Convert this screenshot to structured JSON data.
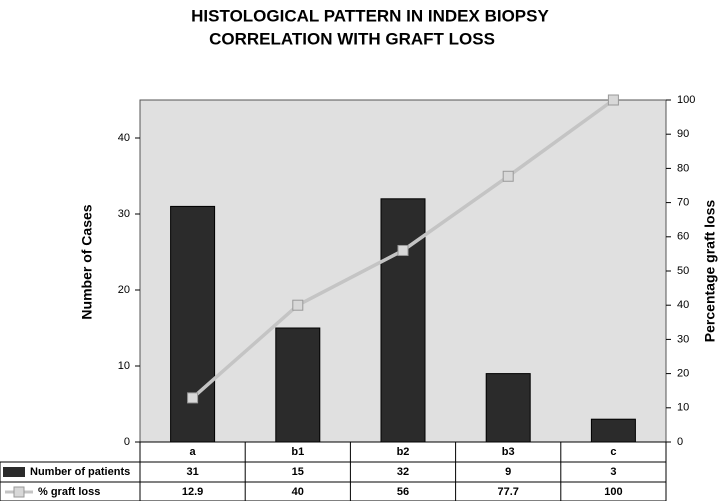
{
  "chart_data": {
    "type": "bar-line",
    "title": [
      "HISTOLOGICAL PATTERN IN INDEX BIOPSY",
      "CORRELATION WITH GRAFT LOSS"
    ],
    "y_label": "Number of Cases",
    "y2_label": "Percentage graft loss",
    "categories": [
      "a",
      "b1",
      "b2",
      "b3",
      "c"
    ],
    "series": [
      {
        "name": "Number of patients",
        "type": "bar",
        "color": "#2b2b2b",
        "values": [
          31,
          15,
          32,
          9,
          3
        ]
      },
      {
        "name": "% graft loss",
        "type": "line",
        "axis": "y2",
        "color": "#c4c4c4",
        "values": [
          12.9,
          40,
          56,
          77.7,
          100
        ]
      }
    ],
    "ylim": [
      0,
      45
    ],
    "yticks": [
      0,
      10,
      20,
      30,
      40
    ],
    "y2lim": [
      0,
      100
    ],
    "y2ticks": [
      0,
      10,
      20,
      30,
      40,
      50,
      60,
      70,
      80,
      90,
      100
    ],
    "data_table": true
  }
}
